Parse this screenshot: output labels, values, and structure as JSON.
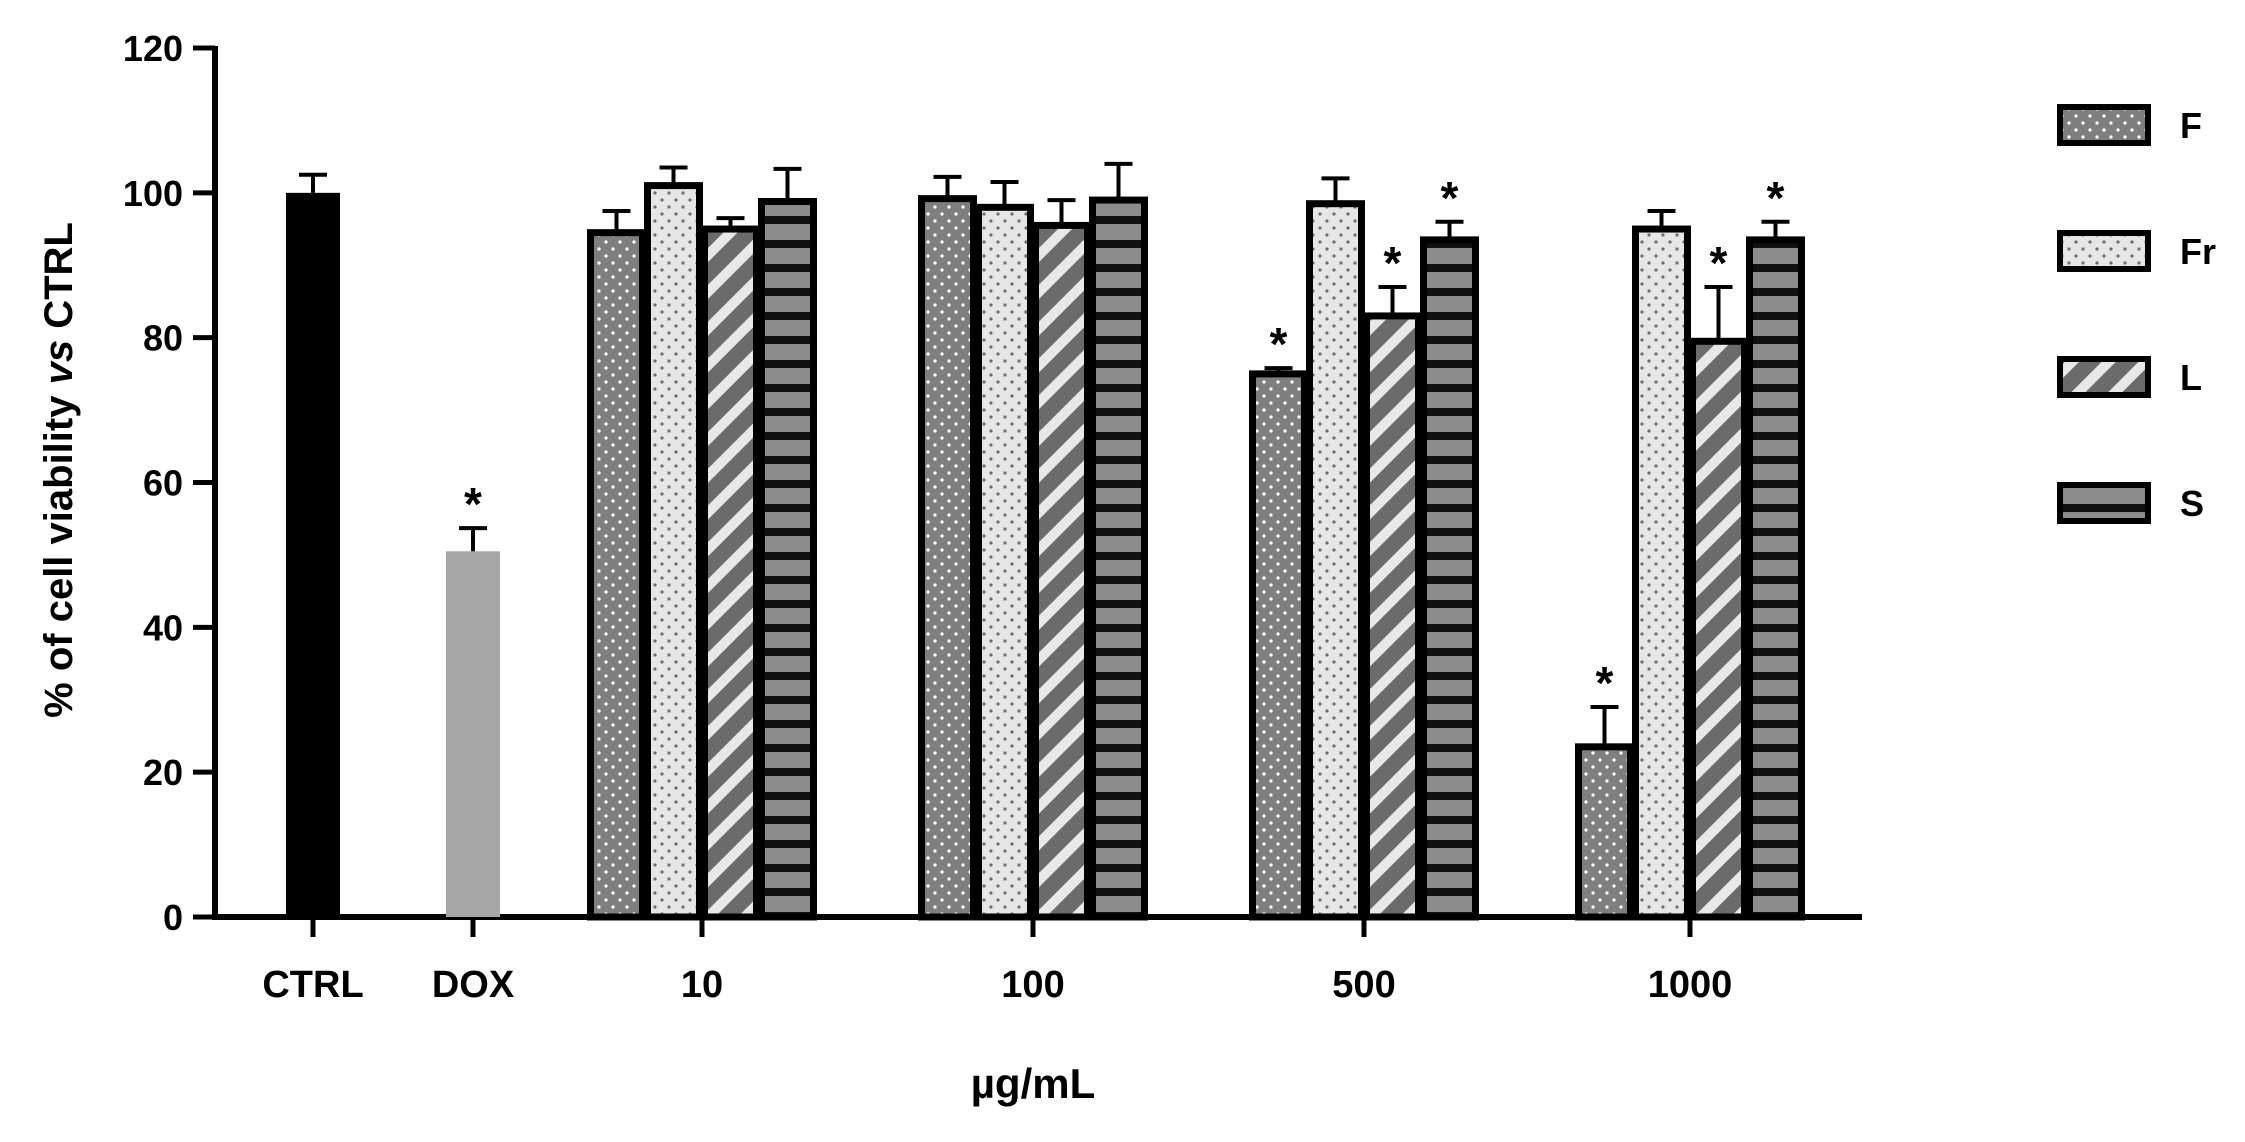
{
  "chart_data": {
    "type": "bar",
    "title": "",
    "ylabel_parts": [
      "% of cell viability ",
      "vs",
      " CTRL"
    ],
    "xlabel": "µg/mL",
    "ylim": [
      0,
      120
    ],
    "yticks": [
      0,
      20,
      40,
      60,
      80,
      100,
      120
    ],
    "grid": false,
    "legend_position": "right",
    "controls": [
      {
        "label": "CTRL",
        "value": 100,
        "error": 2.5,
        "color": "#000000",
        "significant": false
      },
      {
        "label": "DOX",
        "value": 50.5,
        "error": 3.2,
        "color": "#a6a6a6",
        "significant": true
      }
    ],
    "categories": [
      "10",
      "100",
      "500",
      "1000"
    ],
    "series": [
      {
        "name": "F",
        "pattern": "dots",
        "values": [
          94.5,
          99.2,
          75.0,
          23.5
        ],
        "errors": [
          3.0,
          3.0,
          0.8,
          5.5
        ],
        "significant": [
          false,
          false,
          true,
          true
        ]
      },
      {
        "name": "Fr",
        "pattern": "light-dots",
        "values": [
          101.0,
          98.0,
          98.5,
          95.0
        ],
        "errors": [
          2.5,
          3.5,
          3.5,
          2.5
        ],
        "significant": [
          false,
          false,
          false,
          false
        ]
      },
      {
        "name": "L",
        "pattern": "diagonal",
        "values": [
          95.0,
          95.5,
          83.0,
          79.5
        ],
        "errors": [
          1.5,
          3.5,
          4.0,
          7.5
        ],
        "significant": [
          false,
          false,
          true,
          true
        ]
      },
      {
        "name": "S",
        "pattern": "horizontal",
        "values": [
          98.8,
          99.0,
          93.5,
          93.5
        ],
        "errors": [
          4.5,
          5.0,
          2.5,
          2.5
        ],
        "significant": [
          false,
          false,
          true,
          true
        ]
      }
    ],
    "significance_marker": "*"
  }
}
